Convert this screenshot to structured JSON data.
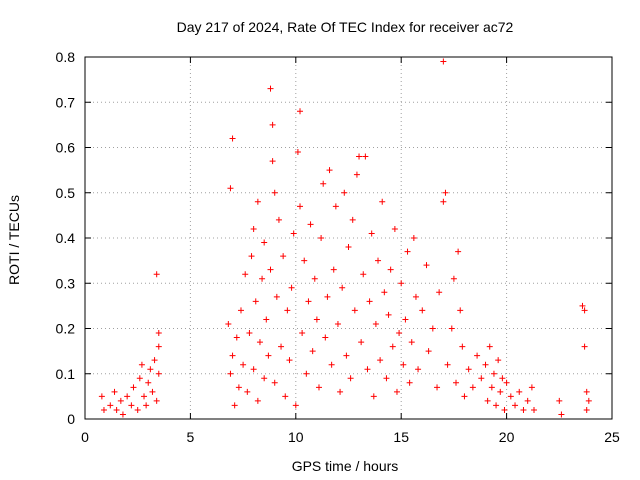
{
  "chart_data": {
    "type": "scatter",
    "title": "Day 217 of 2024, Rate Of TEC Index for receiver ac72",
    "xlabel": "GPS time / hours",
    "ylabel": "ROTI / TECUs",
    "xlim": [
      0,
      25
    ],
    "ylim": [
      0,
      0.8
    ],
    "x_ticks": [
      "0",
      "5",
      "10",
      "15",
      "20",
      "25"
    ],
    "y_ticks": [
      "0",
      "0.1",
      "0.2",
      "0.3",
      "0.4",
      "0.5",
      "0.6",
      "0.7",
      "0.8"
    ],
    "grid": true,
    "marker": "+",
    "color": "#ff0000",
    "series": [
      {
        "points": [
          [
            0.8,
            0.05
          ],
          [
            0.9,
            0.02
          ],
          [
            1.2,
            0.03
          ],
          [
            1.4,
            0.06
          ],
          [
            1.5,
            0.02
          ],
          [
            1.7,
            0.04
          ],
          [
            1.8,
            0.01
          ],
          [
            2.0,
            0.05
          ],
          [
            2.2,
            0.03
          ],
          [
            2.3,
            0.07
          ],
          [
            2.5,
            0.02
          ],
          [
            2.6,
            0.09
          ],
          [
            2.7,
            0.12
          ],
          [
            2.8,
            0.05
          ],
          [
            2.9,
            0.03
          ],
          [
            3.0,
            0.08
          ],
          [
            3.1,
            0.11
          ],
          [
            3.2,
            0.06
          ],
          [
            3.3,
            0.13
          ],
          [
            3.4,
            0.04
          ],
          [
            3.4,
            0.32
          ],
          [
            3.5,
            0.19
          ],
          [
            3.5,
            0.16
          ],
          [
            3.5,
            0.1
          ],
          [
            6.8,
            0.21
          ],
          [
            6.9,
            0.1
          ],
          [
            6.9,
            0.51
          ],
          [
            7.0,
            0.62
          ],
          [
            7.0,
            0.14
          ],
          [
            7.1,
            0.03
          ],
          [
            7.2,
            0.18
          ],
          [
            7.3,
            0.07
          ],
          [
            7.4,
            0.24
          ],
          [
            7.5,
            0.12
          ],
          [
            7.6,
            0.32
          ],
          [
            7.7,
            0.06
          ],
          [
            7.8,
            0.19
          ],
          [
            7.9,
            0.36
          ],
          [
            8.0,
            0.11
          ],
          [
            8.0,
            0.42
          ],
          [
            8.1,
            0.26
          ],
          [
            8.2,
            0.48
          ],
          [
            8.2,
            0.04
          ],
          [
            8.3,
            0.17
          ],
          [
            8.4,
            0.31
          ],
          [
            8.5,
            0.39
          ],
          [
            8.5,
            0.09
          ],
          [
            8.6,
            0.22
          ],
          [
            8.7,
            0.14
          ],
          [
            8.8,
            0.73
          ],
          [
            8.8,
            0.33
          ],
          [
            8.9,
            0.65
          ],
          [
            8.9,
            0.57
          ],
          [
            9.0,
            0.5
          ],
          [
            9.0,
            0.08
          ],
          [
            9.1,
            0.27
          ],
          [
            9.2,
            0.44
          ],
          [
            9.3,
            0.16
          ],
          [
            9.4,
            0.36
          ],
          [
            9.5,
            0.05
          ],
          [
            9.6,
            0.24
          ],
          [
            9.7,
            0.13
          ],
          [
            9.8,
            0.29
          ],
          [
            9.9,
            0.41
          ],
          [
            10.0,
            0.03
          ],
          [
            10.1,
            0.59
          ],
          [
            10.2,
            0.68
          ],
          [
            10.2,
            0.47
          ],
          [
            10.3,
            0.19
          ],
          [
            10.4,
            0.35
          ],
          [
            10.5,
            0.1
          ],
          [
            10.6,
            0.26
          ],
          [
            10.7,
            0.43
          ],
          [
            10.8,
            0.15
          ],
          [
            10.9,
            0.31
          ],
          [
            11.0,
            0.22
          ],
          [
            11.1,
            0.07
          ],
          [
            11.2,
            0.4
          ],
          [
            11.3,
            0.52
          ],
          [
            11.4,
            0.18
          ],
          [
            11.5,
            0.27
          ],
          [
            11.6,
            0.55
          ],
          [
            11.7,
            0.12
          ],
          [
            11.8,
            0.33
          ],
          [
            11.9,
            0.47
          ],
          [
            12.0,
            0.21
          ],
          [
            12.1,
            0.06
          ],
          [
            12.2,
            0.29
          ],
          [
            12.3,
            0.5
          ],
          [
            12.4,
            0.14
          ],
          [
            12.5,
            0.38
          ],
          [
            12.6,
            0.09
          ],
          [
            12.7,
            0.44
          ],
          [
            12.8,
            0.24
          ],
          [
            12.9,
            0.54
          ],
          [
            13.0,
            0.58
          ],
          [
            13.1,
            0.17
          ],
          [
            13.2,
            0.32
          ],
          [
            13.3,
            0.58
          ],
          [
            13.4,
            0.11
          ],
          [
            13.5,
            0.26
          ],
          [
            13.6,
            0.41
          ],
          [
            13.7,
            0.05
          ],
          [
            13.8,
            0.21
          ],
          [
            13.9,
            0.35
          ],
          [
            14.0,
            0.13
          ],
          [
            14.1,
            0.48
          ],
          [
            14.2,
            0.28
          ],
          [
            14.3,
            0.09
          ],
          [
            14.4,
            0.23
          ],
          [
            14.5,
            0.33
          ],
          [
            14.6,
            0.16
          ],
          [
            14.7,
            0.42
          ],
          [
            14.8,
            0.06
          ],
          [
            14.9,
            0.19
          ],
          [
            15.0,
            0.3
          ],
          [
            15.1,
            0.12
          ],
          [
            15.2,
            0.22
          ],
          [
            15.3,
            0.37
          ],
          [
            15.4,
            0.08
          ],
          [
            15.5,
            0.17
          ],
          [
            15.6,
            0.4
          ],
          [
            15.7,
            0.27
          ],
          [
            15.8,
            0.11
          ],
          [
            16.0,
            0.24
          ],
          [
            16.2,
            0.34
          ],
          [
            16.3,
            0.15
          ],
          [
            16.5,
            0.2
          ],
          [
            16.7,
            0.07
          ],
          [
            16.8,
            0.28
          ],
          [
            17.0,
            0.48
          ],
          [
            17.0,
            0.79
          ],
          [
            17.1,
            0.5
          ],
          [
            17.2,
            0.12
          ],
          [
            17.4,
            0.2
          ],
          [
            17.5,
            0.31
          ],
          [
            17.6,
            0.08
          ],
          [
            17.7,
            0.37
          ],
          [
            17.8,
            0.24
          ],
          [
            17.9,
            0.16
          ],
          [
            18.0,
            0.05
          ],
          [
            18.2,
            0.11
          ],
          [
            18.4,
            0.07
          ],
          [
            18.6,
            0.14
          ],
          [
            18.8,
            0.09
          ],
          [
            19.0,
            0.12
          ],
          [
            19.1,
            0.04
          ],
          [
            19.2,
            0.16
          ],
          [
            19.3,
            0.07
          ],
          [
            19.4,
            0.1
          ],
          [
            19.5,
            0.03
          ],
          [
            19.6,
            0.13
          ],
          [
            19.7,
            0.06
          ],
          [
            19.8,
            0.09
          ],
          [
            19.9,
            0.02
          ],
          [
            20.0,
            0.08
          ],
          [
            20.2,
            0.05
          ],
          [
            20.4,
            0.03
          ],
          [
            20.6,
            0.06
          ],
          [
            20.8,
            0.02
          ],
          [
            21.0,
            0.04
          ],
          [
            21.2,
            0.07
          ],
          [
            21.3,
            0.02
          ],
          [
            22.5,
            0.04
          ],
          [
            22.6,
            0.01
          ],
          [
            23.6,
            0.25
          ],
          [
            23.7,
            0.24
          ],
          [
            23.7,
            0.16
          ],
          [
            23.8,
            0.06
          ],
          [
            23.8,
            0.02
          ],
          [
            23.9,
            0.04
          ]
        ]
      }
    ]
  }
}
